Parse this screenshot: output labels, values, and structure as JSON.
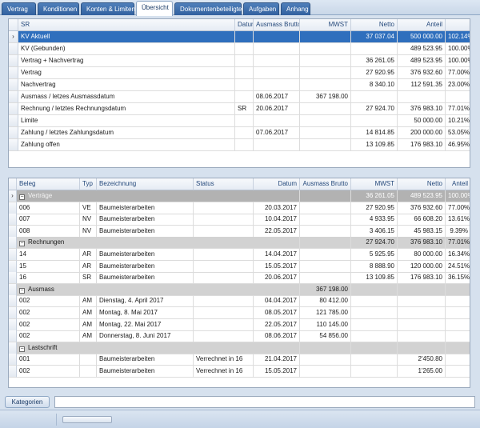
{
  "tabs": [
    "Vertrag",
    "Konditionen",
    "Konten & Limiten",
    "Übersicht",
    "Dokumentenbeteiligte",
    "Aufgaben",
    "Anhang"
  ],
  "active_tab": "Übersicht",
  "summary": {
    "columns": [
      "",
      "SR",
      "Datum",
      "Ausmass Brutto",
      "MWST",
      "Netto",
      "Anteil"
    ],
    "rows": [
      {
        "label": "KV Aktuell",
        "sr": "",
        "datum": "",
        "ausmass": "",
        "mwst": "37 037.04",
        "netto": "500 000.00",
        "anteil": "102.14%",
        "selected": true
      },
      {
        "label": "KV (Gebunden)",
        "sr": "",
        "datum": "",
        "ausmass": "",
        "mwst": "",
        "netto": "489 523.95",
        "anteil": "100.00%"
      },
      {
        "label": "Vertrag + Nachvertrag",
        "sr": "",
        "datum": "",
        "ausmass": "",
        "mwst": "36 261.05",
        "netto": "489 523.95",
        "anteil": "100.00%"
      },
      {
        "label": "Vertrag",
        "sr": "",
        "datum": "",
        "ausmass": "",
        "mwst": "27 920.95",
        "netto": "376 932.60",
        "anteil": "77.00%"
      },
      {
        "label": "Nachvertrag",
        "sr": "",
        "datum": "",
        "ausmass": "",
        "mwst": "8 340.10",
        "netto": "112 591.35",
        "anteil": "23.00%"
      },
      {
        "label": "Ausmass / letzes Ausmassdatum",
        "sr": "",
        "datum": "08.06.2017",
        "ausmass": "367 198.00",
        "mwst": "",
        "netto": "",
        "anteil": ""
      },
      {
        "label": "Rechnung / letztes Rechnungsdatum",
        "sr": "SR",
        "datum": "20.06.2017",
        "ausmass": "",
        "mwst": "27 924.70",
        "netto": "376 983.10",
        "anteil": "77.01%"
      },
      {
        "label": "Limite",
        "sr": "",
        "datum": "",
        "ausmass": "",
        "mwst": "",
        "netto": "50 000.00",
        "anteil": "10.21%"
      },
      {
        "label": "Zahlung / letztes Zahlungsdatum",
        "sr": "",
        "datum": "07.06.2017",
        "ausmass": "",
        "mwst": "14 814.85",
        "netto": "200 000.00",
        "anteil": "53.05%"
      },
      {
        "label": "Zahlung offen",
        "sr": "",
        "datum": "",
        "ausmass": "",
        "mwst": "13 109.85",
        "netto": "176 983.10",
        "anteil": "46.95%"
      }
    ]
  },
  "detail": {
    "columns": [
      "Beleg",
      "Typ",
      "Bezeichnung",
      "Status",
      "Datum",
      "Ausmass Brutto",
      "MWST",
      "Netto",
      "Anteil"
    ],
    "rows": [
      {
        "group": true,
        "label": "Verträge",
        "mwst": "36 261.05",
        "netto": "489 523.95",
        "anteil": "100.00%",
        "selected": true
      },
      {
        "beleg": "006",
        "typ": "VE",
        "bez": "Baumeisterarbeiten",
        "status": "",
        "datum": "20.03.2017",
        "ausmass": "",
        "mwst": "27 920.95",
        "netto": "376 932.60",
        "anteil": "77.00%"
      },
      {
        "beleg": "007",
        "typ": "NV",
        "bez": "Baumeisterarbeiten",
        "status": "",
        "datum": "10.04.2017",
        "ausmass": "",
        "mwst": "4 933.95",
        "netto": "66 608.20",
        "anteil": "13.61%"
      },
      {
        "beleg": "008",
        "typ": "NV",
        "bez": "Baumeisterarbeiten",
        "status": "",
        "datum": "22.05.2017",
        "ausmass": "",
        "mwst": "3 406.15",
        "netto": "45 983.15",
        "anteil": "9.39%"
      },
      {
        "group": true,
        "label": "Rechnungen",
        "mwst": "27 924.70",
        "netto": "376 983.10",
        "anteil": "77.01%"
      },
      {
        "beleg": "14",
        "typ": "AR",
        "bez": "Baumeisterarbeiten",
        "status": "",
        "datum": "14.04.2017",
        "ausmass": "",
        "mwst": "5 925.95",
        "netto": "80 000.00",
        "anteil": "16.34%"
      },
      {
        "beleg": "15",
        "typ": "AR",
        "bez": "Baumeisterarbeiten",
        "status": "",
        "datum": "15.05.2017",
        "ausmass": "",
        "mwst": "8 888.90",
        "netto": "120 000.00",
        "anteil": "24.51%"
      },
      {
        "beleg": "16",
        "typ": "SR",
        "bez": "Baumeisterarbeiten",
        "status": "",
        "datum": "20.06.2017",
        "ausmass": "",
        "mwst": "13 109.85",
        "netto": "176 983.10",
        "anteil": "36.15%"
      },
      {
        "group": true,
        "label": "Ausmass",
        "ausmass": "367 198.00",
        "mwst": "",
        "netto": "",
        "anteil": ""
      },
      {
        "beleg": "002",
        "typ": "AM",
        "bez": "Dienstag, 4. April 2017",
        "status": "",
        "datum": "04.04.2017",
        "ausmass": "80 412.00",
        "mwst": "",
        "netto": "",
        "anteil": ""
      },
      {
        "beleg": "002",
        "typ": "AM",
        "bez": "Montag, 8. Mai 2017",
        "status": "",
        "datum": "08.05.2017",
        "ausmass": "121 785.00",
        "mwst": "",
        "netto": "",
        "anteil": ""
      },
      {
        "beleg": "002",
        "typ": "AM",
        "bez": "Montag, 22. Mai 2017",
        "status": "",
        "datum": "22.05.2017",
        "ausmass": "110 145.00",
        "mwst": "",
        "netto": "",
        "anteil": ""
      },
      {
        "beleg": "002",
        "typ": "AM",
        "bez": "Donnerstag, 8. Juni 2017",
        "status": "",
        "datum": "08.06.2017",
        "ausmass": "54 856.00",
        "mwst": "",
        "netto": "",
        "anteil": ""
      },
      {
        "group": true,
        "label": "Lastschrift",
        "mwst": "",
        "netto": "",
        "anteil": ""
      },
      {
        "beleg": "001",
        "typ": "",
        "bez": "Baumeisterarbeiten",
        "status": "Verrechnet in 16",
        "datum": "21.04.2017",
        "ausmass": "",
        "mwst": "",
        "netto": "2'450.80",
        "anteil": ""
      },
      {
        "beleg": "002",
        "typ": "",
        "bez": "Baumeisterarbeiten",
        "status": "Verrechnet in 16",
        "datum": "15.05.2017",
        "ausmass": "",
        "mwst": "",
        "netto": "1'265.00",
        "anteil": ""
      }
    ]
  },
  "bottom": {
    "kategorien_label": "Kategorien"
  }
}
